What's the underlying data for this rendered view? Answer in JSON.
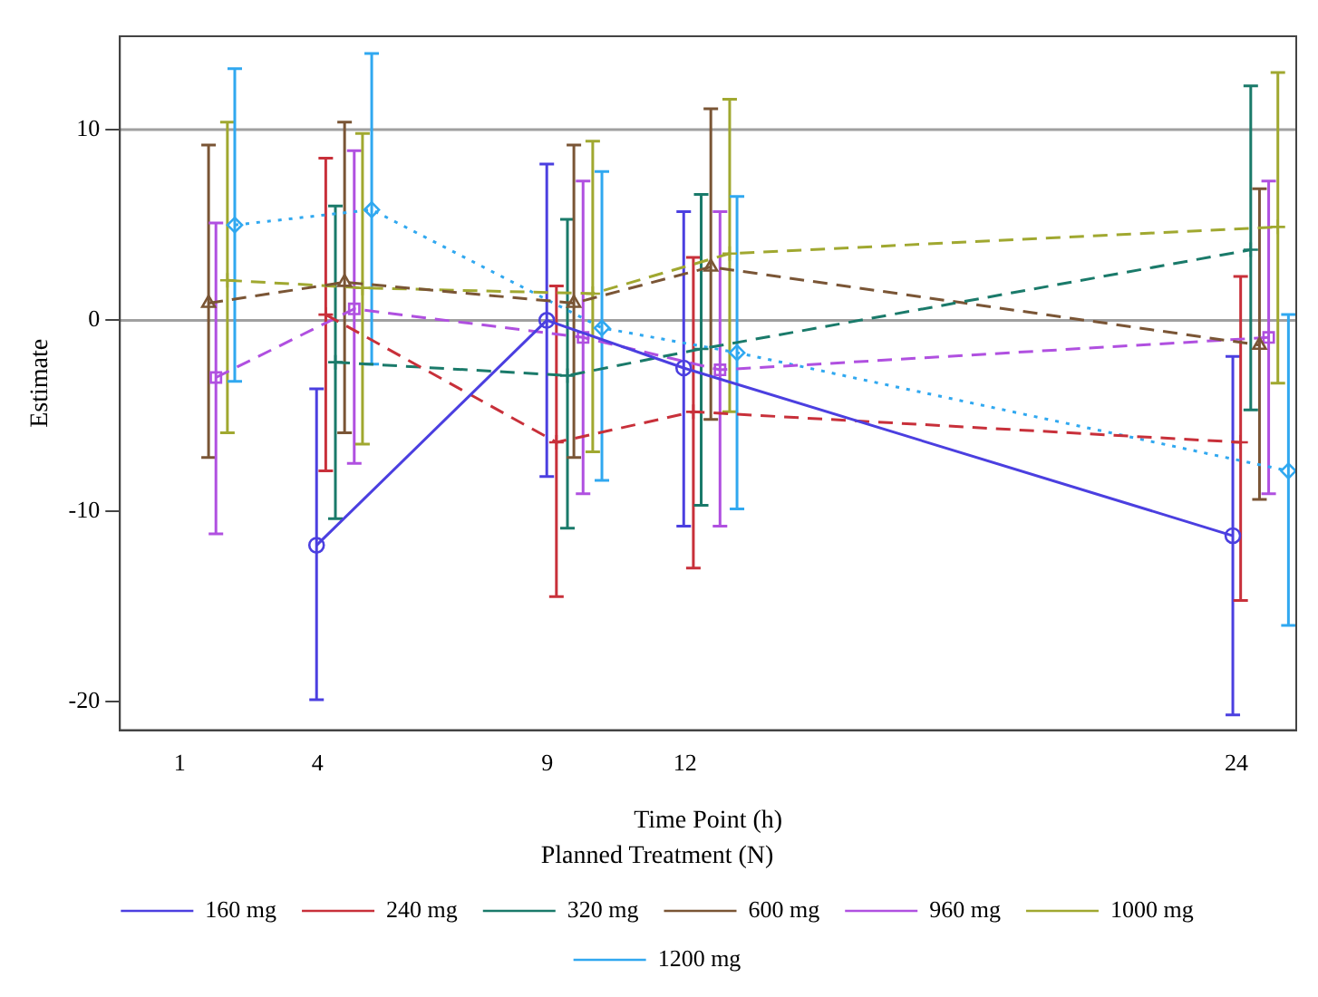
{
  "chart_data": {
    "type": "line",
    "xlabel": "Time Point (h)",
    "ylabel": "Estimate",
    "legend_title": "Planned Treatment (N)",
    "legend": "bottom",
    "grid": false,
    "xlim": [
      -0.3,
      25.3
    ],
    "xticks": [
      1,
      4,
      9,
      12,
      24
    ],
    "ylim": [
      -21.5,
      14.9
    ],
    "yticks": [
      10,
      0,
      -10,
      -20
    ],
    "ref_lines": [
      {
        "axis": "y",
        "value": 10,
        "color": "#a0a0a0"
      },
      {
        "axis": "y",
        "value": 0,
        "color": "#a0a0a0"
      }
    ],
    "series": [
      {
        "name": "160 mg",
        "color": "#4b3fe0",
        "marker": "circle",
        "line_style": "solid",
        "x": [
          3.98,
          8.99,
          11.97,
          23.92
        ],
        "values": [
          -11.8,
          0,
          -2.5,
          -11.3
        ],
        "errors": [
          [
            -19.9,
            -3.6
          ],
          [
            -8.2,
            8.2
          ],
          [
            -10.8,
            5.7
          ],
          [
            -20.7,
            -1.9
          ]
        ]
      },
      {
        "name": "240 mg",
        "color": "#c8303a",
        "marker": "cross",
        "line_style": "dashed",
        "x": [
          4.18,
          9.2,
          12.18,
          24.09
        ],
        "values": [
          0.3,
          -6.4,
          -4.8,
          -6.4
        ],
        "errors": [
          [
            -7.9,
            8.5
          ],
          [
            -14.5,
            1.8
          ],
          [
            -13,
            3.3
          ],
          [
            -14.7,
            2.3
          ]
        ]
      },
      {
        "name": "320 mg",
        "color": "#1a7a6a",
        "marker": "cross",
        "line_style": "dashed",
        "x": [
          4.39,
          9.44,
          12.35,
          24.31
        ],
        "values": [
          -2.2,
          -2.9,
          -1.5,
          3.7
        ],
        "errors": [
          [
            -10.4,
            6
          ],
          [
            -10.9,
            5.3
          ],
          [
            -9.7,
            6.6
          ],
          [
            -4.7,
            12.3
          ]
        ]
      },
      {
        "name": "600 mg",
        "color": "#7a5535",
        "marker": "triangle",
        "line_style": "dashed",
        "x": [
          1.63,
          4.59,
          9.58,
          12.56,
          24.5
        ],
        "values": [
          0.9,
          2,
          0.9,
          2.8,
          -1.3
        ],
        "errors": [
          [
            -7.2,
            9.2
          ],
          [
            -5.9,
            10.4
          ],
          [
            -7.2,
            9.2
          ],
          [
            -5.2,
            11.1
          ],
          [
            -9.4,
            6.9
          ]
        ]
      },
      {
        "name": "960 mg",
        "color": "#b050e0",
        "marker": "square",
        "line_style": "dashed",
        "x": [
          1.79,
          4.8,
          9.78,
          12.76,
          24.7
        ],
        "values": [
          -3,
          0.6,
          -0.9,
          -2.6,
          -0.9
        ],
        "errors": [
          [
            -11.2,
            5.1
          ],
          [
            -7.5,
            8.9
          ],
          [
            -9.1,
            7.3
          ],
          [
            -10.8,
            5.7
          ],
          [
            -9.1,
            7.3
          ]
        ]
      },
      {
        "name": "1000 mg",
        "color": "#a0a830",
        "marker": "cross",
        "line_style": "dashed",
        "x": [
          2.04,
          4.98,
          9.99,
          12.97,
          24.9
        ],
        "values": [
          2.1,
          1.7,
          1.4,
          3.5,
          4.9
        ],
        "errors": [
          [
            -5.9,
            10.4
          ],
          [
            -6.5,
            9.8
          ],
          [
            -6.9,
            9.4
          ],
          [
            -4.8,
            11.6
          ],
          [
            -3.3,
            13
          ]
        ]
      },
      {
        "name": "1200 mg",
        "color": "#30a8f0",
        "marker": "diamond",
        "line_style": "dotted",
        "x": [
          2.2,
          5.18,
          10.19,
          13.13,
          25.13
        ],
        "values": [
          5,
          5.8,
          -0.4,
          -1.7,
          -7.9
        ],
        "errors": [
          [
            -3.2,
            13.2
          ],
          [
            -2.3,
            14
          ],
          [
            -8.4,
            7.8
          ],
          [
            -9.9,
            6.5
          ],
          [
            -16,
            0.3
          ]
        ]
      }
    ]
  }
}
